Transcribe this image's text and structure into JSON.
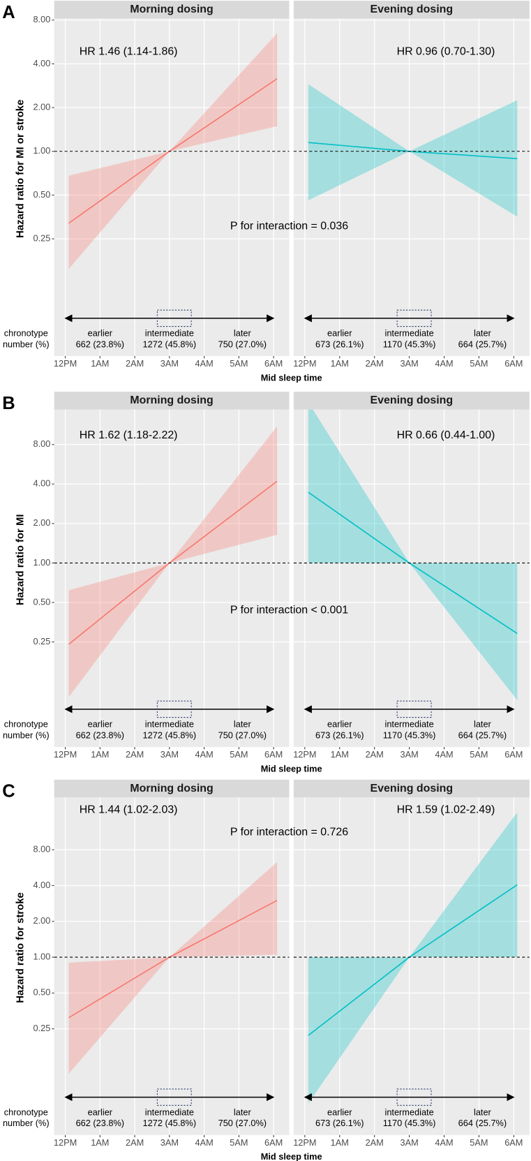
{
  "chart_data": [
    {
      "type": "line",
      "panel_label": "A",
      "ylabel": "Hazard ratio for MI or stroke",
      "xlabel": "Mid sleep time",
      "annotation": "P for interaction = 0.036",
      "log_y": true,
      "grid": true,
      "hline": 1,
      "ylim": [
        0.039,
        8.2
      ],
      "yticks": [
        0.25,
        {
          "value": 0.5,
          "label": "0.50"
        },
        {
          "value": 1,
          "label": "1.00"
        },
        {
          "value": 2,
          "label": "2.00"
        },
        {
          "value": 4,
          "label": "4.00"
        },
        {
          "value": 8,
          "label": "8.00"
        }
      ],
      "xlim": [
        -0.32,
        6.45
      ],
      "xticks": [
        {
          "value": 0,
          "label": "12PM"
        },
        {
          "value": 1,
          "label": "1AM"
        },
        {
          "value": 2,
          "label": "2AM"
        },
        {
          "value": 3,
          "label": "3AM"
        },
        {
          "value": 4,
          "label": "4AM"
        },
        {
          "value": 5,
          "label": "5AM"
        },
        {
          "value": 6,
          "label": "6AM"
        }
      ],
      "row_labels": [
        "chronotype",
        "number (%)"
      ],
      "facets": [
        {
          "title": "Morning dosing",
          "hr_label": "HR 1.46 (1.14-1.86)",
          "color": "#f8766d",
          "x": [
            0.1,
            3,
            6.1
          ],
          "values": [
            0.32,
            1,
            3.16
          ],
          "lower": [
            0.155,
            1,
            1.49
          ],
          "upper": [
            0.68,
            1,
            6.5
          ],
          "groups": [
            {
              "name": "earlier",
              "count": "662 (23.8%)"
            },
            {
              "name": "intermediate",
              "count": "1272 (45.8%)"
            },
            {
              "name": "later",
              "count": "750 (27.0%)"
            }
          ]
        },
        {
          "title": "Evening dosing",
          "hr_label": "HR 0.96 (0.70-1.30)",
          "color": "#00bfc4",
          "x": [
            0.1,
            3,
            6.1
          ],
          "values": [
            1.15,
            1,
            0.89
          ],
          "lower": [
            0.46,
            1,
            0.355
          ],
          "upper": [
            2.9,
            1,
            2.25
          ],
          "groups": [
            {
              "name": "earlier",
              "count": "673 (26.1%)"
            },
            {
              "name": "intermediate",
              "count": "1170 (45.3%)"
            },
            {
              "name": "later",
              "count": "664 (25.7%)"
            }
          ]
        }
      ]
    },
    {
      "type": "line",
      "panel_label": "B",
      "ylabel": "Hazard ratio for MI",
      "xlabel": "Mid sleep time",
      "annotation": "P for interaction < 0.001",
      "log_y": true,
      "grid": true,
      "hline": 1,
      "ylim": [
        0.0395,
        14.8
      ],
      "yticks": [
        0.25,
        {
          "value": 0.5,
          "label": "0.50"
        },
        {
          "value": 1,
          "label": "1.00"
        },
        {
          "value": 2,
          "label": "2.00"
        },
        {
          "value": 4,
          "label": "4.00"
        },
        {
          "value": 8,
          "label": "8.00"
        }
      ],
      "xlim": [
        -0.32,
        6.45
      ],
      "xticks": [
        {
          "value": 0,
          "label": "12PM"
        },
        {
          "value": 1,
          "label": "1AM"
        },
        {
          "value": 2,
          "label": "2AM"
        },
        {
          "value": 3,
          "label": "3AM"
        },
        {
          "value": 4,
          "label": "4AM"
        },
        {
          "value": 5,
          "label": "5AM"
        },
        {
          "value": 6,
          "label": "6AM"
        }
      ],
      "row_labels": [
        "chronotype",
        "number (%)"
      ],
      "facets": [
        {
          "title": "Morning dosing",
          "hr_label": "HR 1.62 (1.18-2.22)",
          "color": "#f8766d",
          "x": [
            0.1,
            3,
            6.1
          ],
          "values": [
            0.24,
            1,
            4.2
          ],
          "lower": [
            0.095,
            1,
            1.64
          ],
          "upper": [
            0.62,
            1,
            11
          ],
          "groups": [
            {
              "name": "earlier",
              "count": "662 (23.8%)"
            },
            {
              "name": "intermediate",
              "count": "1272 (45.8%)"
            },
            {
              "name": "later",
              "count": "750 (27.0%)"
            }
          ]
        },
        {
          "title": "Evening dosing",
          "hr_label": "HR 0.66 (0.44-1.00)",
          "color": "#00bfc4",
          "x": [
            0.1,
            3,
            6.1
          ],
          "values": [
            3.46,
            1,
            0.29
          ],
          "lower": [
            1,
            1,
            0.09
          ],
          "upper": [
            16.8,
            1,
            1
          ],
          "groups": [
            {
              "name": "earlier",
              "count": "673 (26.1%)"
            },
            {
              "name": "intermediate",
              "count": "1170 (45.3%)"
            },
            {
              "name": "later",
              "count": "664 (25.7%)"
            }
          ]
        }
      ]
    },
    {
      "type": "line",
      "panel_label": "C",
      "ylabel": "Hazard ratio for stroke",
      "xlabel": "Mid sleep time",
      "annotation": "P for interaction = 0.726",
      "log_y": true,
      "grid": true,
      "hline": 1,
      "ylim": [
        0.032,
        22
      ],
      "yticks": [
        0.25,
        {
          "value": 0.5,
          "label": "0.50"
        },
        {
          "value": 1,
          "label": "1.00"
        },
        {
          "value": 2,
          "label": "2.00"
        },
        {
          "value": 4,
          "label": "4.00"
        },
        {
          "value": 8,
          "label": "8.00"
        }
      ],
      "xlim": [
        -0.32,
        6.45
      ],
      "xticks": [
        {
          "value": 0,
          "label": "12PM"
        },
        {
          "value": 1,
          "label": "1AM"
        },
        {
          "value": 2,
          "label": "2AM"
        },
        {
          "value": 3,
          "label": "3AM"
        },
        {
          "value": 4,
          "label": "4AM"
        },
        {
          "value": 5,
          "label": "5AM"
        },
        {
          "value": 6,
          "label": "6AM"
        }
      ],
      "row_labels": [
        "chronotype",
        "number (%)"
      ],
      "facets": [
        {
          "title": "Morning dosing",
          "hr_label": "HR 1.44 (1.02-2.03)",
          "color": "#f8766d",
          "x": [
            0.1,
            3,
            6.1
          ],
          "values": [
            0.31,
            1,
            3.0
          ],
          "lower": [
            0.105,
            1,
            1.05
          ],
          "upper": [
            0.9,
            1,
            6.3
          ],
          "groups": [
            {
              "name": "earlier",
              "count": "662 (23.8%)"
            },
            {
              "name": "intermediate",
              "count": "1272 (45.8%)"
            },
            {
              "name": "later",
              "count": "750 (27.0%)"
            }
          ]
        },
        {
          "title": "Evening dosing",
          "hr_label": "HR 1.59 (1.02-2.49)",
          "color": "#00bfc4",
          "x": [
            0.1,
            3,
            6.1
          ],
          "values": [
            0.22,
            1,
            4.06
          ],
          "lower": [
            0.059,
            1,
            1
          ],
          "upper": [
            1,
            1,
            16.5
          ],
          "groups": [
            {
              "name": "earlier",
              "count": "673 (26.1%)"
            },
            {
              "name": "intermediate",
              "count": "1170 (45.3%)"
            },
            {
              "name": "later",
              "count": "664 (25.7%)"
            }
          ]
        }
      ]
    }
  ]
}
